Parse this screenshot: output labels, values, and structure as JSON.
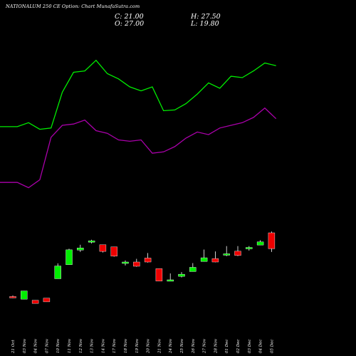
{
  "header": {
    "title": "NATIONALUM 250  CE Option: Chart MunafaSutra.com",
    "close": "C: 21.00",
    "open": "O: 27.00",
    "high": "H: 27.50",
    "low": "L: 19.80"
  },
  "colors": {
    "background": "#000000",
    "up": "#00ee00",
    "down": "#ee0000",
    "upper_band": "#00ee00",
    "lower_band": "#aa00aa",
    "text": "#ffffff"
  },
  "chart_data": {
    "type": "candlestick",
    "grid": false,
    "dates": [
      "21 Oct",
      "03 Nov",
      "04 Nov",
      "07 Nov",
      "10 Nov",
      "11 Nov",
      "12 Nov",
      "13 Nov",
      "14 Nov",
      "17 Nov",
      "18 Nov",
      "19 Nov",
      "20 Nov",
      "21 Nov",
      "24 Nov",
      "25 Nov",
      "26 Nov",
      "27 Nov",
      "28 Nov",
      "01 Dec",
      "02 Dec",
      "03 Dec",
      "04 Dec",
      "05 Dec"
    ],
    "candles": [
      {
        "o": 3.0,
        "h": 3.4,
        "l": 2.4,
        "c": 2.7
      },
      {
        "o": 2.0,
        "h": 5.1,
        "l": 2.0,
        "c": 5.1
      },
      {
        "o": 1.6,
        "h": 1.6,
        "l": 0.4,
        "c": 0.4
      },
      {
        "o": 2.4,
        "h": 2.4,
        "l": 1.0,
        "c": 1.0
      },
      {
        "o": 9.7,
        "h": 15.5,
        "l": 9.7,
        "c": 14.5
      },
      {
        "o": 15.0,
        "h": 21.0,
        "l": 15.0,
        "c": 20.6
      },
      {
        "o": 20.5,
        "h": 22.5,
        "l": 19.8,
        "c": 21.3
      },
      {
        "o": 24.0,
        "h": 24.4,
        "l": 23.0,
        "c": 24.0
      },
      {
        "o": 22.5,
        "h": 22.5,
        "l": 19.6,
        "c": 20.0
      },
      {
        "o": 21.7,
        "h": 21.7,
        "l": 18.0,
        "c": 18.2
      },
      {
        "o": 15.6,
        "h": 16.6,
        "l": 14.7,
        "c": 16.0
      },
      {
        "o": 16.0,
        "h": 17.2,
        "l": 14.2,
        "c": 14.4
      },
      {
        "o": 17.5,
        "h": 19.4,
        "l": 15.8,
        "c": 16.0
      },
      {
        "o": 13.5,
        "h": 13.5,
        "l": 8.8,
        "c": 8.8
      },
      {
        "o": 8.8,
        "h": 11.7,
        "l": 8.8,
        "c": 9.3
      },
      {
        "o": 10.6,
        "h": 12.2,
        "l": 10.2,
        "c": 11.4
      },
      {
        "o": 12.4,
        "h": 15.6,
        "l": 12.4,
        "c": 14.0
      },
      {
        "o": 16.2,
        "h": 20.7,
        "l": 16.2,
        "c": 17.6
      },
      {
        "o": 17.3,
        "h": 20.0,
        "l": 15.9,
        "c": 16.0
      },
      {
        "o": 18.7,
        "h": 22.0,
        "l": 18.2,
        "c": 19.1
      },
      {
        "o": 20.1,
        "h": 22.0,
        "l": 18.2,
        "c": 18.5
      },
      {
        "o": 21.0,
        "h": 22.0,
        "l": 20.3,
        "c": 21.5
      },
      {
        "o": 22.4,
        "h": 24.2,
        "l": 22.4,
        "c": 23.6
      },
      {
        "o": 27.0,
        "h": 27.5,
        "l": 19.8,
        "c": 21.0
      }
    ],
    "upper_band": [
      67.0,
      67.0,
      68.5,
      66.0,
      66.5,
      80.0,
      87.5,
      88.0,
      92.0,
      87.0,
      85.0,
      82.0,
      80.5,
      82.0,
      73.0,
      73.3,
      75.7,
      79.3,
      83.5,
      81.5,
      86.0,
      85.5,
      88.0,
      91.0,
      90.0
    ],
    "lower_band": [
      46.0,
      46.0,
      44.0,
      47.0,
      63.0,
      67.5,
      68.0,
      69.5,
      65.5,
      64.5,
      62.0,
      61.5,
      62.0,
      57.0,
      57.5,
      59.5,
      62.7,
      65.0,
      64.0,
      66.5,
      67.5,
      68.5,
      70.5,
      74.0,
      70.0
    ],
    "y_range": [
      -6.0,
      104.0
    ]
  }
}
